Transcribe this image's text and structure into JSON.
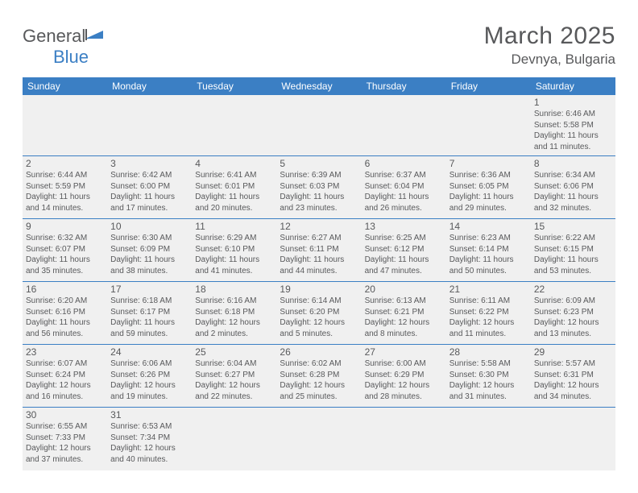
{
  "logo": {
    "text1": "General",
    "text2": "Blue"
  },
  "title": "March 2025",
  "location": "Devnya, Bulgaria",
  "colors": {
    "header_bg": "#3b7fc4",
    "header_text": "#ffffff",
    "cell_bg": "#f0f0f0",
    "border": "#3b7fc4",
    "text": "#58595b",
    "logo_blue": "#3b7fc4"
  },
  "dayNames": [
    "Sunday",
    "Monday",
    "Tuesday",
    "Wednesday",
    "Thursday",
    "Friday",
    "Saturday"
  ],
  "weeks": [
    [
      null,
      null,
      null,
      null,
      null,
      null,
      {
        "n": "1",
        "sr": "Sunrise: 6:46 AM",
        "ss": "Sunset: 5:58 PM",
        "d1": "Daylight: 11 hours",
        "d2": "and 11 minutes."
      }
    ],
    [
      {
        "n": "2",
        "sr": "Sunrise: 6:44 AM",
        "ss": "Sunset: 5:59 PM",
        "d1": "Daylight: 11 hours",
        "d2": "and 14 minutes."
      },
      {
        "n": "3",
        "sr": "Sunrise: 6:42 AM",
        "ss": "Sunset: 6:00 PM",
        "d1": "Daylight: 11 hours",
        "d2": "and 17 minutes."
      },
      {
        "n": "4",
        "sr": "Sunrise: 6:41 AM",
        "ss": "Sunset: 6:01 PM",
        "d1": "Daylight: 11 hours",
        "d2": "and 20 minutes."
      },
      {
        "n": "5",
        "sr": "Sunrise: 6:39 AM",
        "ss": "Sunset: 6:03 PM",
        "d1": "Daylight: 11 hours",
        "d2": "and 23 minutes."
      },
      {
        "n": "6",
        "sr": "Sunrise: 6:37 AM",
        "ss": "Sunset: 6:04 PM",
        "d1": "Daylight: 11 hours",
        "d2": "and 26 minutes."
      },
      {
        "n": "7",
        "sr": "Sunrise: 6:36 AM",
        "ss": "Sunset: 6:05 PM",
        "d1": "Daylight: 11 hours",
        "d2": "and 29 minutes."
      },
      {
        "n": "8",
        "sr": "Sunrise: 6:34 AM",
        "ss": "Sunset: 6:06 PM",
        "d1": "Daylight: 11 hours",
        "d2": "and 32 minutes."
      }
    ],
    [
      {
        "n": "9",
        "sr": "Sunrise: 6:32 AM",
        "ss": "Sunset: 6:07 PM",
        "d1": "Daylight: 11 hours",
        "d2": "and 35 minutes."
      },
      {
        "n": "10",
        "sr": "Sunrise: 6:30 AM",
        "ss": "Sunset: 6:09 PM",
        "d1": "Daylight: 11 hours",
        "d2": "and 38 minutes."
      },
      {
        "n": "11",
        "sr": "Sunrise: 6:29 AM",
        "ss": "Sunset: 6:10 PM",
        "d1": "Daylight: 11 hours",
        "d2": "and 41 minutes."
      },
      {
        "n": "12",
        "sr": "Sunrise: 6:27 AM",
        "ss": "Sunset: 6:11 PM",
        "d1": "Daylight: 11 hours",
        "d2": "and 44 minutes."
      },
      {
        "n": "13",
        "sr": "Sunrise: 6:25 AM",
        "ss": "Sunset: 6:12 PM",
        "d1": "Daylight: 11 hours",
        "d2": "and 47 minutes."
      },
      {
        "n": "14",
        "sr": "Sunrise: 6:23 AM",
        "ss": "Sunset: 6:14 PM",
        "d1": "Daylight: 11 hours",
        "d2": "and 50 minutes."
      },
      {
        "n": "15",
        "sr": "Sunrise: 6:22 AM",
        "ss": "Sunset: 6:15 PM",
        "d1": "Daylight: 11 hours",
        "d2": "and 53 minutes."
      }
    ],
    [
      {
        "n": "16",
        "sr": "Sunrise: 6:20 AM",
        "ss": "Sunset: 6:16 PM",
        "d1": "Daylight: 11 hours",
        "d2": "and 56 minutes."
      },
      {
        "n": "17",
        "sr": "Sunrise: 6:18 AM",
        "ss": "Sunset: 6:17 PM",
        "d1": "Daylight: 11 hours",
        "d2": "and 59 minutes."
      },
      {
        "n": "18",
        "sr": "Sunrise: 6:16 AM",
        "ss": "Sunset: 6:18 PM",
        "d1": "Daylight: 12 hours",
        "d2": "and 2 minutes."
      },
      {
        "n": "19",
        "sr": "Sunrise: 6:14 AM",
        "ss": "Sunset: 6:20 PM",
        "d1": "Daylight: 12 hours",
        "d2": "and 5 minutes."
      },
      {
        "n": "20",
        "sr": "Sunrise: 6:13 AM",
        "ss": "Sunset: 6:21 PM",
        "d1": "Daylight: 12 hours",
        "d2": "and 8 minutes."
      },
      {
        "n": "21",
        "sr": "Sunrise: 6:11 AM",
        "ss": "Sunset: 6:22 PM",
        "d1": "Daylight: 12 hours",
        "d2": "and 11 minutes."
      },
      {
        "n": "22",
        "sr": "Sunrise: 6:09 AM",
        "ss": "Sunset: 6:23 PM",
        "d1": "Daylight: 12 hours",
        "d2": "and 13 minutes."
      }
    ],
    [
      {
        "n": "23",
        "sr": "Sunrise: 6:07 AM",
        "ss": "Sunset: 6:24 PM",
        "d1": "Daylight: 12 hours",
        "d2": "and 16 minutes."
      },
      {
        "n": "24",
        "sr": "Sunrise: 6:06 AM",
        "ss": "Sunset: 6:26 PM",
        "d1": "Daylight: 12 hours",
        "d2": "and 19 minutes."
      },
      {
        "n": "25",
        "sr": "Sunrise: 6:04 AM",
        "ss": "Sunset: 6:27 PM",
        "d1": "Daylight: 12 hours",
        "d2": "and 22 minutes."
      },
      {
        "n": "26",
        "sr": "Sunrise: 6:02 AM",
        "ss": "Sunset: 6:28 PM",
        "d1": "Daylight: 12 hours",
        "d2": "and 25 minutes."
      },
      {
        "n": "27",
        "sr": "Sunrise: 6:00 AM",
        "ss": "Sunset: 6:29 PM",
        "d1": "Daylight: 12 hours",
        "d2": "and 28 minutes."
      },
      {
        "n": "28",
        "sr": "Sunrise: 5:58 AM",
        "ss": "Sunset: 6:30 PM",
        "d1": "Daylight: 12 hours",
        "d2": "and 31 minutes."
      },
      {
        "n": "29",
        "sr": "Sunrise: 5:57 AM",
        "ss": "Sunset: 6:31 PM",
        "d1": "Daylight: 12 hours",
        "d2": "and 34 minutes."
      }
    ],
    [
      {
        "n": "30",
        "sr": "Sunrise: 6:55 AM",
        "ss": "Sunset: 7:33 PM",
        "d1": "Daylight: 12 hours",
        "d2": "and 37 minutes."
      },
      {
        "n": "31",
        "sr": "Sunrise: 6:53 AM",
        "ss": "Sunset: 7:34 PM",
        "d1": "Daylight: 12 hours",
        "d2": "and 40 minutes."
      },
      null,
      null,
      null,
      null,
      null
    ]
  ]
}
